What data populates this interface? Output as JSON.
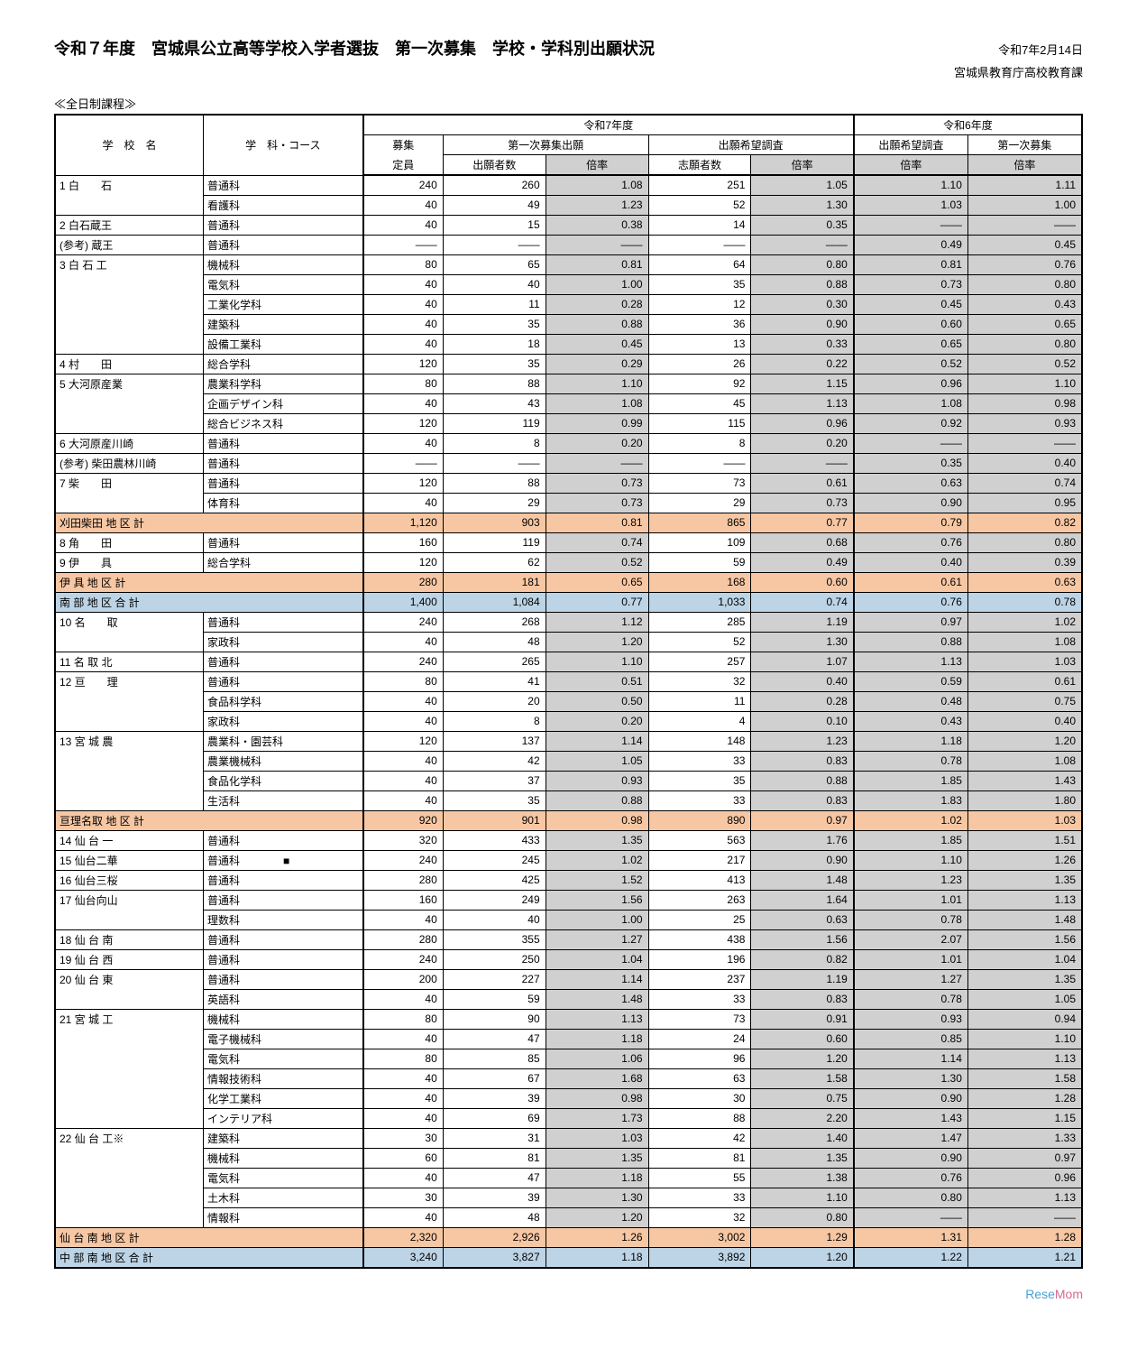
{
  "header": {
    "title": "令和７年度　宮城県公立高等学校入学者選抜　第一次募集　学校・学科別出願状況",
    "date": "令和7年2月14日",
    "agency": "宮城県教育庁高校教育課",
    "section": "≪全日制課程≫"
  },
  "columns": {
    "school": "学　校　名",
    "course": "学　科・コース",
    "r7": "令和7年度",
    "r6": "令和6年度",
    "capacity_top": "募集",
    "capacity_bottom": "定員",
    "first_app": "第一次募集出願",
    "wish_survey": "出願希望調査",
    "r6_wish": "出願希望調査",
    "r6_first": "第一次募集",
    "applicants": "出願者数",
    "ratio": "倍率",
    "wish_count": "志願者数"
  },
  "rows": [
    {
      "type": "data",
      "school": "1 白　　石",
      "course": "普通科",
      "cap": "240",
      "a": "260",
      "ar": "1.08",
      "w": "251",
      "wr": "1.05",
      "p1": "1.10",
      "p2": "1.11",
      "first": true
    },
    {
      "type": "data",
      "school": "",
      "course": "看護科",
      "cap": "40",
      "a": "49",
      "ar": "1.23",
      "w": "52",
      "wr": "1.30",
      "p1": "1.03",
      "p2": "1.00"
    },
    {
      "type": "data",
      "school": "2 白石蔵王",
      "course": "普通科",
      "cap": "40",
      "a": "15",
      "ar": "0.38",
      "w": "14",
      "wr": "0.35",
      "p1": "――",
      "p2": "――",
      "first": true
    },
    {
      "type": "data",
      "school": "(参考) 蔵王",
      "course": "普通科",
      "cap": "――",
      "a": "――",
      "ar": "――",
      "w": "――",
      "wr": "――",
      "p1": "0.49",
      "p2": "0.45",
      "first": true
    },
    {
      "type": "data",
      "school": "3 白 石 工",
      "course": "機械科",
      "cap": "80",
      "a": "65",
      "ar": "0.81",
      "w": "64",
      "wr": "0.80",
      "p1": "0.81",
      "p2": "0.76",
      "first": true
    },
    {
      "type": "data",
      "school": "",
      "course": "電気科",
      "cap": "40",
      "a": "40",
      "ar": "1.00",
      "w": "35",
      "wr": "0.88",
      "p1": "0.73",
      "p2": "0.80"
    },
    {
      "type": "data",
      "school": "",
      "course": "工業化学科",
      "cap": "40",
      "a": "11",
      "ar": "0.28",
      "w": "12",
      "wr": "0.30",
      "p1": "0.45",
      "p2": "0.43"
    },
    {
      "type": "data",
      "school": "",
      "course": "建築科",
      "cap": "40",
      "a": "35",
      "ar": "0.88",
      "w": "36",
      "wr": "0.90",
      "p1": "0.60",
      "p2": "0.65"
    },
    {
      "type": "data",
      "school": "",
      "course": "設備工業科",
      "cap": "40",
      "a": "18",
      "ar": "0.45",
      "w": "13",
      "wr": "0.33",
      "p1": "0.65",
      "p2": "0.80"
    },
    {
      "type": "data",
      "school": "4 村　　田",
      "course": "総合学科",
      "cap": "120",
      "a": "35",
      "ar": "0.29",
      "w": "26",
      "wr": "0.22",
      "p1": "0.52",
      "p2": "0.52",
      "first": true
    },
    {
      "type": "data",
      "school": "5 大河原産業",
      "course": "農業科学科",
      "cap": "80",
      "a": "88",
      "ar": "1.10",
      "w": "92",
      "wr": "1.15",
      "p1": "0.96",
      "p2": "1.10",
      "first": true
    },
    {
      "type": "data",
      "school": "",
      "course": "企画デザイン科",
      "cap": "40",
      "a": "43",
      "ar": "1.08",
      "w": "45",
      "wr": "1.13",
      "p1": "1.08",
      "p2": "0.98"
    },
    {
      "type": "data",
      "school": "",
      "course": "総合ビジネス科",
      "cap": "120",
      "a": "119",
      "ar": "0.99",
      "w": "115",
      "wr": "0.96",
      "p1": "0.92",
      "p2": "0.93"
    },
    {
      "type": "data",
      "school": "6 大河原産川崎",
      "course": "普通科",
      "cap": "40",
      "a": "8",
      "ar": "0.20",
      "w": "8",
      "wr": "0.20",
      "p1": "――",
      "p2": "――",
      "first": true
    },
    {
      "type": "data",
      "school": "(参考) 柴田農林川崎",
      "course": "普通科",
      "cap": "――",
      "a": "――",
      "ar": "――",
      "w": "――",
      "wr": "――",
      "p1": "0.35",
      "p2": "0.40",
      "first": true
    },
    {
      "type": "data",
      "school": "7 柴　　田",
      "course": "普通科",
      "cap": "120",
      "a": "88",
      "ar": "0.73",
      "w": "73",
      "wr": "0.61",
      "p1": "0.63",
      "p2": "0.74",
      "first": true
    },
    {
      "type": "data",
      "school": "",
      "course": "体育科",
      "cap": "40",
      "a": "29",
      "ar": "0.73",
      "w": "29",
      "wr": "0.73",
      "p1": "0.90",
      "p2": "0.95"
    },
    {
      "type": "subtotal",
      "style": "peach",
      "school": "刈田柴田 地 区 計",
      "cap": "1,120",
      "a": "903",
      "ar": "0.81",
      "w": "865",
      "wr": "0.77",
      "p1": "0.79",
      "p2": "0.82"
    },
    {
      "type": "data",
      "school": "8 角　　田",
      "course": "普通科",
      "cap": "160",
      "a": "119",
      "ar": "0.74",
      "w": "109",
      "wr": "0.68",
      "p1": "0.76",
      "p2": "0.80",
      "first": true
    },
    {
      "type": "data",
      "school": "9 伊　　具",
      "course": "総合学科",
      "cap": "120",
      "a": "62",
      "ar": "0.52",
      "w": "59",
      "wr": "0.49",
      "p1": "0.40",
      "p2": "0.39",
      "first": true
    },
    {
      "type": "subtotal",
      "style": "peach",
      "school": "伊 具 地 区 計",
      "cap": "280",
      "a": "181",
      "ar": "0.65",
      "w": "168",
      "wr": "0.60",
      "p1": "0.61",
      "p2": "0.63"
    },
    {
      "type": "subtotal",
      "style": "blue",
      "school": "南 部 地 区 合 計",
      "cap": "1,400",
      "a": "1,084",
      "ar": "0.77",
      "w": "1,033",
      "wr": "0.74",
      "p1": "0.76",
      "p2": "0.78"
    },
    {
      "type": "data",
      "school": "10 名　　取",
      "course": "普通科",
      "cap": "240",
      "a": "268",
      "ar": "1.12",
      "w": "285",
      "wr": "1.19",
      "p1": "0.97",
      "p2": "1.02",
      "first": true
    },
    {
      "type": "data",
      "school": "",
      "course": "家政科",
      "cap": "40",
      "a": "48",
      "ar": "1.20",
      "w": "52",
      "wr": "1.30",
      "p1": "0.88",
      "p2": "1.08"
    },
    {
      "type": "data",
      "school": "11 名 取 北",
      "course": "普通科",
      "cap": "240",
      "a": "265",
      "ar": "1.10",
      "w": "257",
      "wr": "1.07",
      "p1": "1.13",
      "p2": "1.03",
      "first": true
    },
    {
      "type": "data",
      "school": "12 亘　　理",
      "course": "普通科",
      "cap": "80",
      "a": "41",
      "ar": "0.51",
      "w": "32",
      "wr": "0.40",
      "p1": "0.59",
      "p2": "0.61",
      "first": true
    },
    {
      "type": "data",
      "school": "",
      "course": "食品科学科",
      "cap": "40",
      "a": "20",
      "ar": "0.50",
      "w": "11",
      "wr": "0.28",
      "p1": "0.48",
      "p2": "0.75"
    },
    {
      "type": "data",
      "school": "",
      "course": "家政科",
      "cap": "40",
      "a": "8",
      "ar": "0.20",
      "w": "4",
      "wr": "0.10",
      "p1": "0.43",
      "p2": "0.40"
    },
    {
      "type": "data",
      "school": "13 宮 城 農",
      "course": "農業科・園芸科",
      "cap": "120",
      "a": "137",
      "ar": "1.14",
      "w": "148",
      "wr": "1.23",
      "p1": "1.18",
      "p2": "1.20",
      "first": true
    },
    {
      "type": "data",
      "school": "",
      "course": "農業機械科",
      "cap": "40",
      "a": "42",
      "ar": "1.05",
      "w": "33",
      "wr": "0.83",
      "p1": "0.78",
      "p2": "1.08"
    },
    {
      "type": "data",
      "school": "",
      "course": "食品化学科",
      "cap": "40",
      "a": "37",
      "ar": "0.93",
      "w": "35",
      "wr": "0.88",
      "p1": "1.85",
      "p2": "1.43"
    },
    {
      "type": "data",
      "school": "",
      "course": "生活科",
      "cap": "40",
      "a": "35",
      "ar": "0.88",
      "w": "33",
      "wr": "0.83",
      "p1": "1.83",
      "p2": "1.80"
    },
    {
      "type": "subtotal",
      "style": "peach",
      "school": "亘理名取 地 区 計",
      "cap": "920",
      "a": "901",
      "ar": "0.98",
      "w": "890",
      "wr": "0.97",
      "p1": "1.02",
      "p2": "1.03"
    },
    {
      "type": "data",
      "school": "14 仙 台 一",
      "course": "普通科",
      "cap": "320",
      "a": "433",
      "ar": "1.35",
      "w": "563",
      "wr": "1.76",
      "p1": "1.85",
      "p2": "1.51",
      "first": true
    },
    {
      "type": "data",
      "school": "15 仙台二華",
      "course": "普通科　　　　■",
      "cap": "240",
      "a": "245",
      "ar": "1.02",
      "w": "217",
      "wr": "0.90",
      "p1": "1.10",
      "p2": "1.26",
      "first": true
    },
    {
      "type": "data",
      "school": "16 仙台三桜",
      "course": "普通科",
      "cap": "280",
      "a": "425",
      "ar": "1.52",
      "w": "413",
      "wr": "1.48",
      "p1": "1.23",
      "p2": "1.35",
      "first": true
    },
    {
      "type": "data",
      "school": "17 仙台向山",
      "course": "普通科",
      "cap": "160",
      "a": "249",
      "ar": "1.56",
      "w": "263",
      "wr": "1.64",
      "p1": "1.01",
      "p2": "1.13",
      "first": true
    },
    {
      "type": "data",
      "school": "",
      "course": "理数科",
      "cap": "40",
      "a": "40",
      "ar": "1.00",
      "w": "25",
      "wr": "0.63",
      "p1": "0.78",
      "p2": "1.48"
    },
    {
      "type": "data",
      "school": "18 仙 台 南",
      "course": "普通科",
      "cap": "280",
      "a": "355",
      "ar": "1.27",
      "w": "438",
      "wr": "1.56",
      "p1": "2.07",
      "p2": "1.56",
      "first": true
    },
    {
      "type": "data",
      "school": "19 仙 台 西",
      "course": "普通科",
      "cap": "240",
      "a": "250",
      "ar": "1.04",
      "w": "196",
      "wr": "0.82",
      "p1": "1.01",
      "p2": "1.04",
      "first": true
    },
    {
      "type": "data",
      "school": "20 仙 台 東",
      "course": "普通科",
      "cap": "200",
      "a": "227",
      "ar": "1.14",
      "w": "237",
      "wr": "1.19",
      "p1": "1.27",
      "p2": "1.35",
      "first": true
    },
    {
      "type": "data",
      "school": "",
      "course": "英語科",
      "cap": "40",
      "a": "59",
      "ar": "1.48",
      "w": "33",
      "wr": "0.83",
      "p1": "0.78",
      "p2": "1.05"
    },
    {
      "type": "data",
      "school": "21 宮 城 工",
      "course": "機械科",
      "cap": "80",
      "a": "90",
      "ar": "1.13",
      "w": "73",
      "wr": "0.91",
      "p1": "0.93",
      "p2": "0.94",
      "first": true
    },
    {
      "type": "data",
      "school": "",
      "course": "電子機械科",
      "cap": "40",
      "a": "47",
      "ar": "1.18",
      "w": "24",
      "wr": "0.60",
      "p1": "0.85",
      "p2": "1.10"
    },
    {
      "type": "data",
      "school": "",
      "course": "電気科",
      "cap": "80",
      "a": "85",
      "ar": "1.06",
      "w": "96",
      "wr": "1.20",
      "p1": "1.14",
      "p2": "1.13"
    },
    {
      "type": "data",
      "school": "",
      "course": "情報技術科",
      "cap": "40",
      "a": "67",
      "ar": "1.68",
      "w": "63",
      "wr": "1.58",
      "p1": "1.30",
      "p2": "1.58"
    },
    {
      "type": "data",
      "school": "",
      "course": "化学工業科",
      "cap": "40",
      "a": "39",
      "ar": "0.98",
      "w": "30",
      "wr": "0.75",
      "p1": "0.90",
      "p2": "1.28"
    },
    {
      "type": "data",
      "school": "",
      "course": "インテリア科",
      "cap": "40",
      "a": "69",
      "ar": "1.73",
      "w": "88",
      "wr": "2.20",
      "p1": "1.43",
      "p2": "1.15"
    },
    {
      "type": "data",
      "school": "22 仙 台 工※",
      "course": "建築科",
      "cap": "30",
      "a": "31",
      "ar": "1.03",
      "w": "42",
      "wr": "1.40",
      "p1": "1.47",
      "p2": "1.33",
      "first": true
    },
    {
      "type": "data",
      "school": "",
      "course": "機械科",
      "cap": "60",
      "a": "81",
      "ar": "1.35",
      "w": "81",
      "wr": "1.35",
      "p1": "0.90",
      "p2": "0.97"
    },
    {
      "type": "data",
      "school": "",
      "course": "電気科",
      "cap": "40",
      "a": "47",
      "ar": "1.18",
      "w": "55",
      "wr": "1.38",
      "p1": "0.76",
      "p2": "0.96"
    },
    {
      "type": "data",
      "school": "",
      "course": "土木科",
      "cap": "30",
      "a": "39",
      "ar": "1.30",
      "w": "33",
      "wr": "1.10",
      "p1": "0.80",
      "p2": "1.13"
    },
    {
      "type": "data",
      "school": "",
      "course": "情報科",
      "cap": "40",
      "a": "48",
      "ar": "1.20",
      "w": "32",
      "wr": "0.80",
      "p1": "――",
      "p2": "――"
    },
    {
      "type": "subtotal",
      "style": "peach",
      "school": "仙 台 南 地 区 計",
      "cap": "2,320",
      "a": "2,926",
      "ar": "1.26",
      "w": "3,002",
      "wr": "1.29",
      "p1": "1.31",
      "p2": "1.28"
    },
    {
      "type": "subtotal",
      "style": "blue",
      "school": "中 部 南 地 区 合 計",
      "cap": "3,240",
      "a": "3,827",
      "ar": "1.18",
      "w": "3,892",
      "wr": "1.20",
      "p1": "1.22",
      "p2": "1.21"
    }
  ],
  "footer": {
    "rese": "Rese",
    "mom": "Mom"
  }
}
